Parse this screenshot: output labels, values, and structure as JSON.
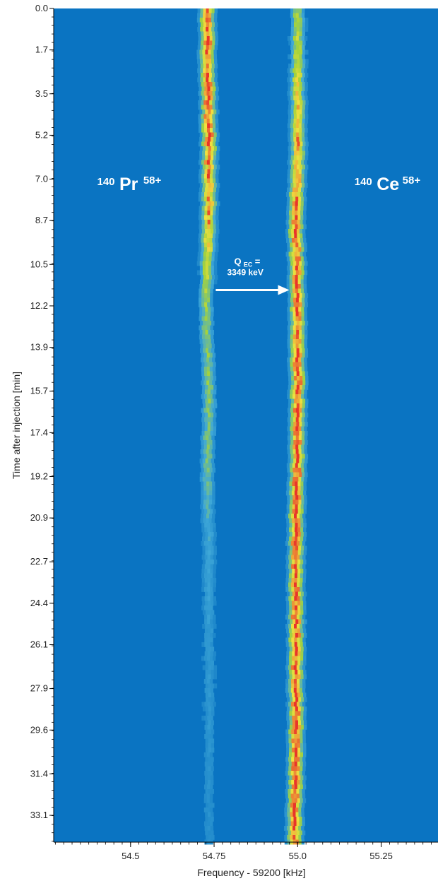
{
  "chart_data": {
    "type": "heatmap",
    "xlabel": "Frequency - 59200 [kHz]",
    "ylabel": "Time after injection [min]",
    "x_ticks": [
      "54.5",
      "54.75",
      "55.0",
      "55.25"
    ],
    "x_tick_values": [
      54.5,
      54.75,
      55.0,
      55.25
    ],
    "xlim": [
      54.27,
      55.42
    ],
    "y_ticks": [
      "0.0",
      "1.7",
      "3.5",
      "5.2",
      "7.0",
      "8.7",
      "10.5",
      "12.2",
      "13.9",
      "15.7",
      "17.4",
      "19.2",
      "20.9",
      "22.7",
      "24.4",
      "26.1",
      "27.9",
      "29.6",
      "31.4",
      "33.1"
    ],
    "y_tick_values": [
      0.0,
      1.7,
      3.5,
      5.2,
      7.0,
      8.7,
      10.5,
      12.2,
      13.9,
      15.7,
      17.4,
      19.2,
      20.9,
      22.7,
      24.4,
      26.1,
      27.9,
      29.6,
      31.4,
      33.1
    ],
    "ylim": [
      0.0,
      34.2
    ],
    "y_inverted": true,
    "grid": false,
    "colors": {
      "background": "#0a74c2",
      "low": "#3fa8d8",
      "mid": "#a6d33a",
      "high": "#f0e040",
      "peak": "#e8352a",
      "annotation": "#ffffff"
    },
    "series": [
      {
        "name_mass": "140",
        "name_element": "Pr",
        "name_charge": "58+",
        "track": [
          [
            0.0,
            54.73
          ],
          [
            2.0,
            54.73
          ],
          [
            5.0,
            54.735
          ],
          [
            8.0,
            54.735
          ],
          [
            10.5,
            54.73
          ],
          [
            12.0,
            54.725
          ],
          [
            14.0,
            54.73
          ],
          [
            16.0,
            54.735
          ],
          [
            18.0,
            54.73
          ],
          [
            20.0,
            54.73
          ],
          [
            22.0,
            54.735
          ],
          [
            25.0,
            54.735
          ],
          [
            28.0,
            54.735
          ],
          [
            31.0,
            54.735
          ],
          [
            34.2,
            54.735
          ]
        ],
        "intensity": [
          [
            0.0,
            1.0
          ],
          [
            5.0,
            1.0
          ],
          [
            9.0,
            0.85
          ],
          [
            11.0,
            0.6
          ],
          [
            13.0,
            0.5
          ],
          [
            16.0,
            0.5
          ],
          [
            19.0,
            0.45
          ],
          [
            21.0,
            0.35
          ],
          [
            23.0,
            0.3
          ],
          [
            26.0,
            0.25
          ],
          [
            30.0,
            0.22
          ],
          [
            34.2,
            0.18
          ]
        ]
      },
      {
        "name_mass": "140",
        "name_element": "Ce",
        "name_charge": "58+",
        "track": [
          [
            0.0,
            55.0
          ],
          [
            3.0,
            55.0
          ],
          [
            6.0,
            55.0
          ],
          [
            9.0,
            54.995
          ],
          [
            12.0,
            55.0
          ],
          [
            15.0,
            55.0
          ],
          [
            18.0,
            55.0
          ],
          [
            21.0,
            54.995
          ],
          [
            24.0,
            54.995
          ],
          [
            27.0,
            54.995
          ],
          [
            30.0,
            54.995
          ],
          [
            34.2,
            54.99
          ]
        ],
        "intensity": [
          [
            0.0,
            0.55
          ],
          [
            3.0,
            0.75
          ],
          [
            6.0,
            0.9
          ],
          [
            9.0,
            1.0
          ],
          [
            34.2,
            1.0
          ]
        ]
      }
    ],
    "annotation": {
      "q_main": "Q",
      "q_sub": "EC",
      "q_eq": " =",
      "value": "3349 keV",
      "arrow_from_x": 54.755,
      "arrow_to_x": 54.975,
      "arrow_y": 11.55
    }
  }
}
